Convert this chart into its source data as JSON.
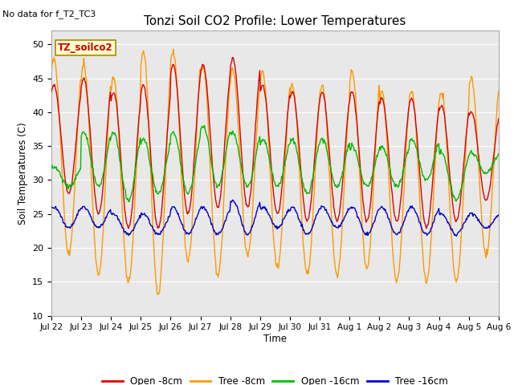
{
  "title": "Tonzi Soil CO2 Profile: Lower Temperatures",
  "subtitle": "No data for f_T2_TC3",
  "ylabel": "Soil Temperatures (C)",
  "xlabel": "Time",
  "ylim": [
    10,
    52
  ],
  "yticks": [
    10,
    15,
    20,
    25,
    30,
    35,
    40,
    45,
    50
  ],
  "legend_label": "TZ_soilco2",
  "series_labels": [
    "Open -8cm",
    "Tree -8cm",
    "Open -16cm",
    "Tree -16cm"
  ],
  "series_colors": [
    "#dd0000",
    "#ff9900",
    "#00bb00",
    "#0000cc"
  ],
  "fig_bg": "#ffffff",
  "plot_bg": "#e8e8e8",
  "tick_dates": [
    "Jul 22",
    "Jul 23",
    "Jul 24",
    "Jul 25",
    "Jul 26",
    "Jul 27",
    "Jul 28",
    "Jul 29",
    "Jul 30",
    "Jul 31",
    "Aug 1",
    "Aug 2",
    "Aug 3",
    "Aug 4",
    "Aug 5",
    "Aug 6"
  ],
  "n_days": 15,
  "pts_per_day": 48,
  "day_peaks_open8": [
    44,
    45,
    43,
    44,
    47,
    47,
    48,
    44,
    43,
    43,
    43,
    42,
    42,
    41,
    40
  ],
  "day_peaks_tree8": [
    48,
    47,
    45,
    49,
    49,
    47,
    46,
    46,
    44,
    44,
    46,
    43,
    43,
    43,
    45
  ],
  "day_peaks_open16": [
    32,
    37,
    37,
    36,
    37,
    38,
    37,
    36,
    36,
    36,
    35,
    35,
    36,
    34,
    34
  ],
  "day_peaks_tree16": [
    26,
    26,
    25,
    25,
    26,
    26,
    27,
    26,
    26,
    26,
    26,
    26,
    26,
    25,
    25
  ],
  "day_troughs_open8": [
    28,
    25,
    23,
    23,
    25,
    26,
    26,
    25,
    24,
    24,
    24,
    24,
    23,
    24,
    27
  ],
  "day_troughs_tree8": [
    19,
    16,
    15,
    13,
    18,
    16,
    19,
    17,
    16,
    16,
    17,
    15,
    15,
    15,
    19
  ],
  "day_troughs_open16": [
    29,
    29,
    27,
    28,
    28,
    29,
    29,
    29,
    28,
    29,
    29,
    29,
    30,
    27,
    31
  ],
  "day_troughs_tree16": [
    23,
    23,
    22,
    22,
    22,
    22,
    22,
    23,
    22,
    23,
    22,
    22,
    22,
    22,
    23
  ]
}
